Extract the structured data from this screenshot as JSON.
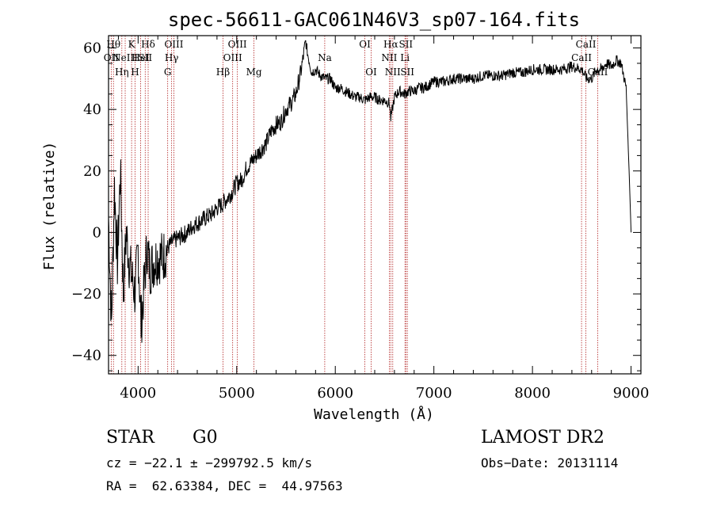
{
  "chart_data": {
    "type": "line",
    "title": "spec-56611-GAC061N46V3_sp07-164.fits",
    "xlabel": "Wavelength (Å)",
    "ylabel": "Flux (relative)",
    "xlim": [
      3700,
      9100
    ],
    "ylim": [
      -46,
      64
    ],
    "x_ticks": [
      4000,
      5000,
      6000,
      7000,
      8000,
      9000
    ],
    "y_ticks": [
      -40,
      -20,
      0,
      20,
      40,
      60
    ],
    "grid": false,
    "line_color": "#000000",
    "marker_color": "#b22222",
    "series": [
      {
        "x": [
          3700,
          3730,
          3760,
          3790,
          3820,
          3850,
          3880,
          3910,
          3940,
          3970,
          4000,
          4030,
          4060,
          4090,
          4120,
          4150,
          4200,
          4250,
          4300,
          4350,
          4400,
          4450,
          4500,
          4550,
          4600,
          4650,
          4700,
          4750,
          4800,
          4850,
          4900,
          4950,
          5000,
          5050,
          5100,
          5150,
          5200,
          5250,
          5300,
          5350,
          5400,
          5450,
          5500,
          5550,
          5600,
          5650,
          5700,
          5720,
          5760,
          5800,
          5850,
          5900,
          5950,
          6000,
          6050,
          6100,
          6150,
          6200,
          6250,
          6300,
          6350,
          6400,
          6450,
          6500,
          6550,
          6563,
          6600,
          6650,
          6700,
          6750,
          6800,
          6850,
          6900,
          6950,
          7000,
          7100,
          7200,
          7300,
          7400,
          7500,
          7600,
          7700,
          7800,
          7900,
          8000,
          8100,
          8200,
          8300,
          8400,
          8500,
          8550,
          8600,
          8650,
          8700,
          8750,
          8800,
          8850,
          8900,
          8950,
          8980,
          9000
        ],
        "y": [
          5,
          -30,
          15,
          -10,
          20,
          -20,
          0,
          -10,
          -15,
          -20,
          -5,
          -30,
          -18,
          -5,
          -12,
          -10,
          -8,
          -8,
          -5,
          -3,
          -2,
          -1,
          0,
          2,
          3,
          4,
          5,
          6,
          8,
          9,
          11,
          13,
          16,
          17,
          21,
          23,
          25,
          27,
          29,
          33,
          35,
          36,
          40,
          42,
          45,
          52,
          62,
          58,
          52,
          53,
          51,
          50,
          50,
          47,
          47,
          46,
          45,
          44,
          44,
          43,
          44,
          44,
          43,
          43,
          42,
          37,
          44,
          46,
          45,
          46,
          46,
          47,
          47,
          48,
          49,
          49,
          50,
          50,
          50,
          51,
          51,
          51,
          52,
          52,
          53,
          53,
          53,
          53,
          54,
          53,
          50,
          50,
          53,
          53,
          55,
          54,
          56,
          55,
          47,
          20,
          0
        ]
      }
    ],
    "lines": [
      {
        "wavelength": 3727,
        "label": "OII",
        "row": 2
      },
      {
        "wavelength": 3750,
        "label": "Hθ",
        "row": 1
      },
      {
        "wavelength": 3835,
        "label": "Hη",
        "row": 3
      },
      {
        "wavelength": 3869,
        "label": "NeIII",
        "row": 2
      },
      {
        "wavelength": 3934,
        "label": "K",
        "row": 1
      },
      {
        "wavelength": 3969,
        "label": "H",
        "row": 3
      },
      {
        "wavelength": 4026,
        "label": "HeI",
        "row": 2
      },
      {
        "wavelength": 4072,
        "label": "SII",
        "row": 2
      },
      {
        "wavelength": 4102,
        "label": "Hδ",
        "row": 1
      },
      {
        "wavelength": 4300,
        "label": "G",
        "row": 3
      },
      {
        "wavelength": 4340,
        "label": "Hγ",
        "row": 2
      },
      {
        "wavelength": 4363,
        "label": "OIII",
        "row": 1
      },
      {
        "wavelength": 4861,
        "label": "Hβ",
        "row": 3
      },
      {
        "wavelength": 4959,
        "label": "OIII",
        "row": 2
      },
      {
        "wavelength": 5007,
        "label": "OIII",
        "row": 1
      },
      {
        "wavelength": 5175,
        "label": "Mg",
        "row": 3
      },
      {
        "wavelength": 5893,
        "label": "Na",
        "row": 2
      },
      {
        "wavelength": 6300,
        "label": "OI",
        "row": 1
      },
      {
        "wavelength": 6364,
        "label": "OI",
        "row": 3
      },
      {
        "wavelength": 6548,
        "label": "NII",
        "row": 2
      },
      {
        "wavelength": 6563,
        "label": "Hα",
        "row": 1
      },
      {
        "wavelength": 6583,
        "label": "NII",
        "row": 3
      },
      {
        "wavelength": 6707,
        "label": "Li",
        "row": 2
      },
      {
        "wavelength": 6716,
        "label": "SII",
        "row": 1
      },
      {
        "wavelength": 6731,
        "label": "SII",
        "row": 3
      },
      {
        "wavelength": 8498,
        "label": "CaII",
        "row": 2
      },
      {
        "wavelength": 8542,
        "label": "CaII",
        "row": 1
      },
      {
        "wavelength": 8662,
        "label": "CaII",
        "row": 3
      }
    ]
  },
  "info": {
    "object_class": "STAR",
    "subclass": "G0",
    "survey": "LAMOST DR2",
    "cz": "cz = −22.1 ± −299792.5 km/s",
    "obs_date": "Obs−Date: 20131114",
    "coords": "RA =  62.63384, DEC =  44.97563"
  }
}
